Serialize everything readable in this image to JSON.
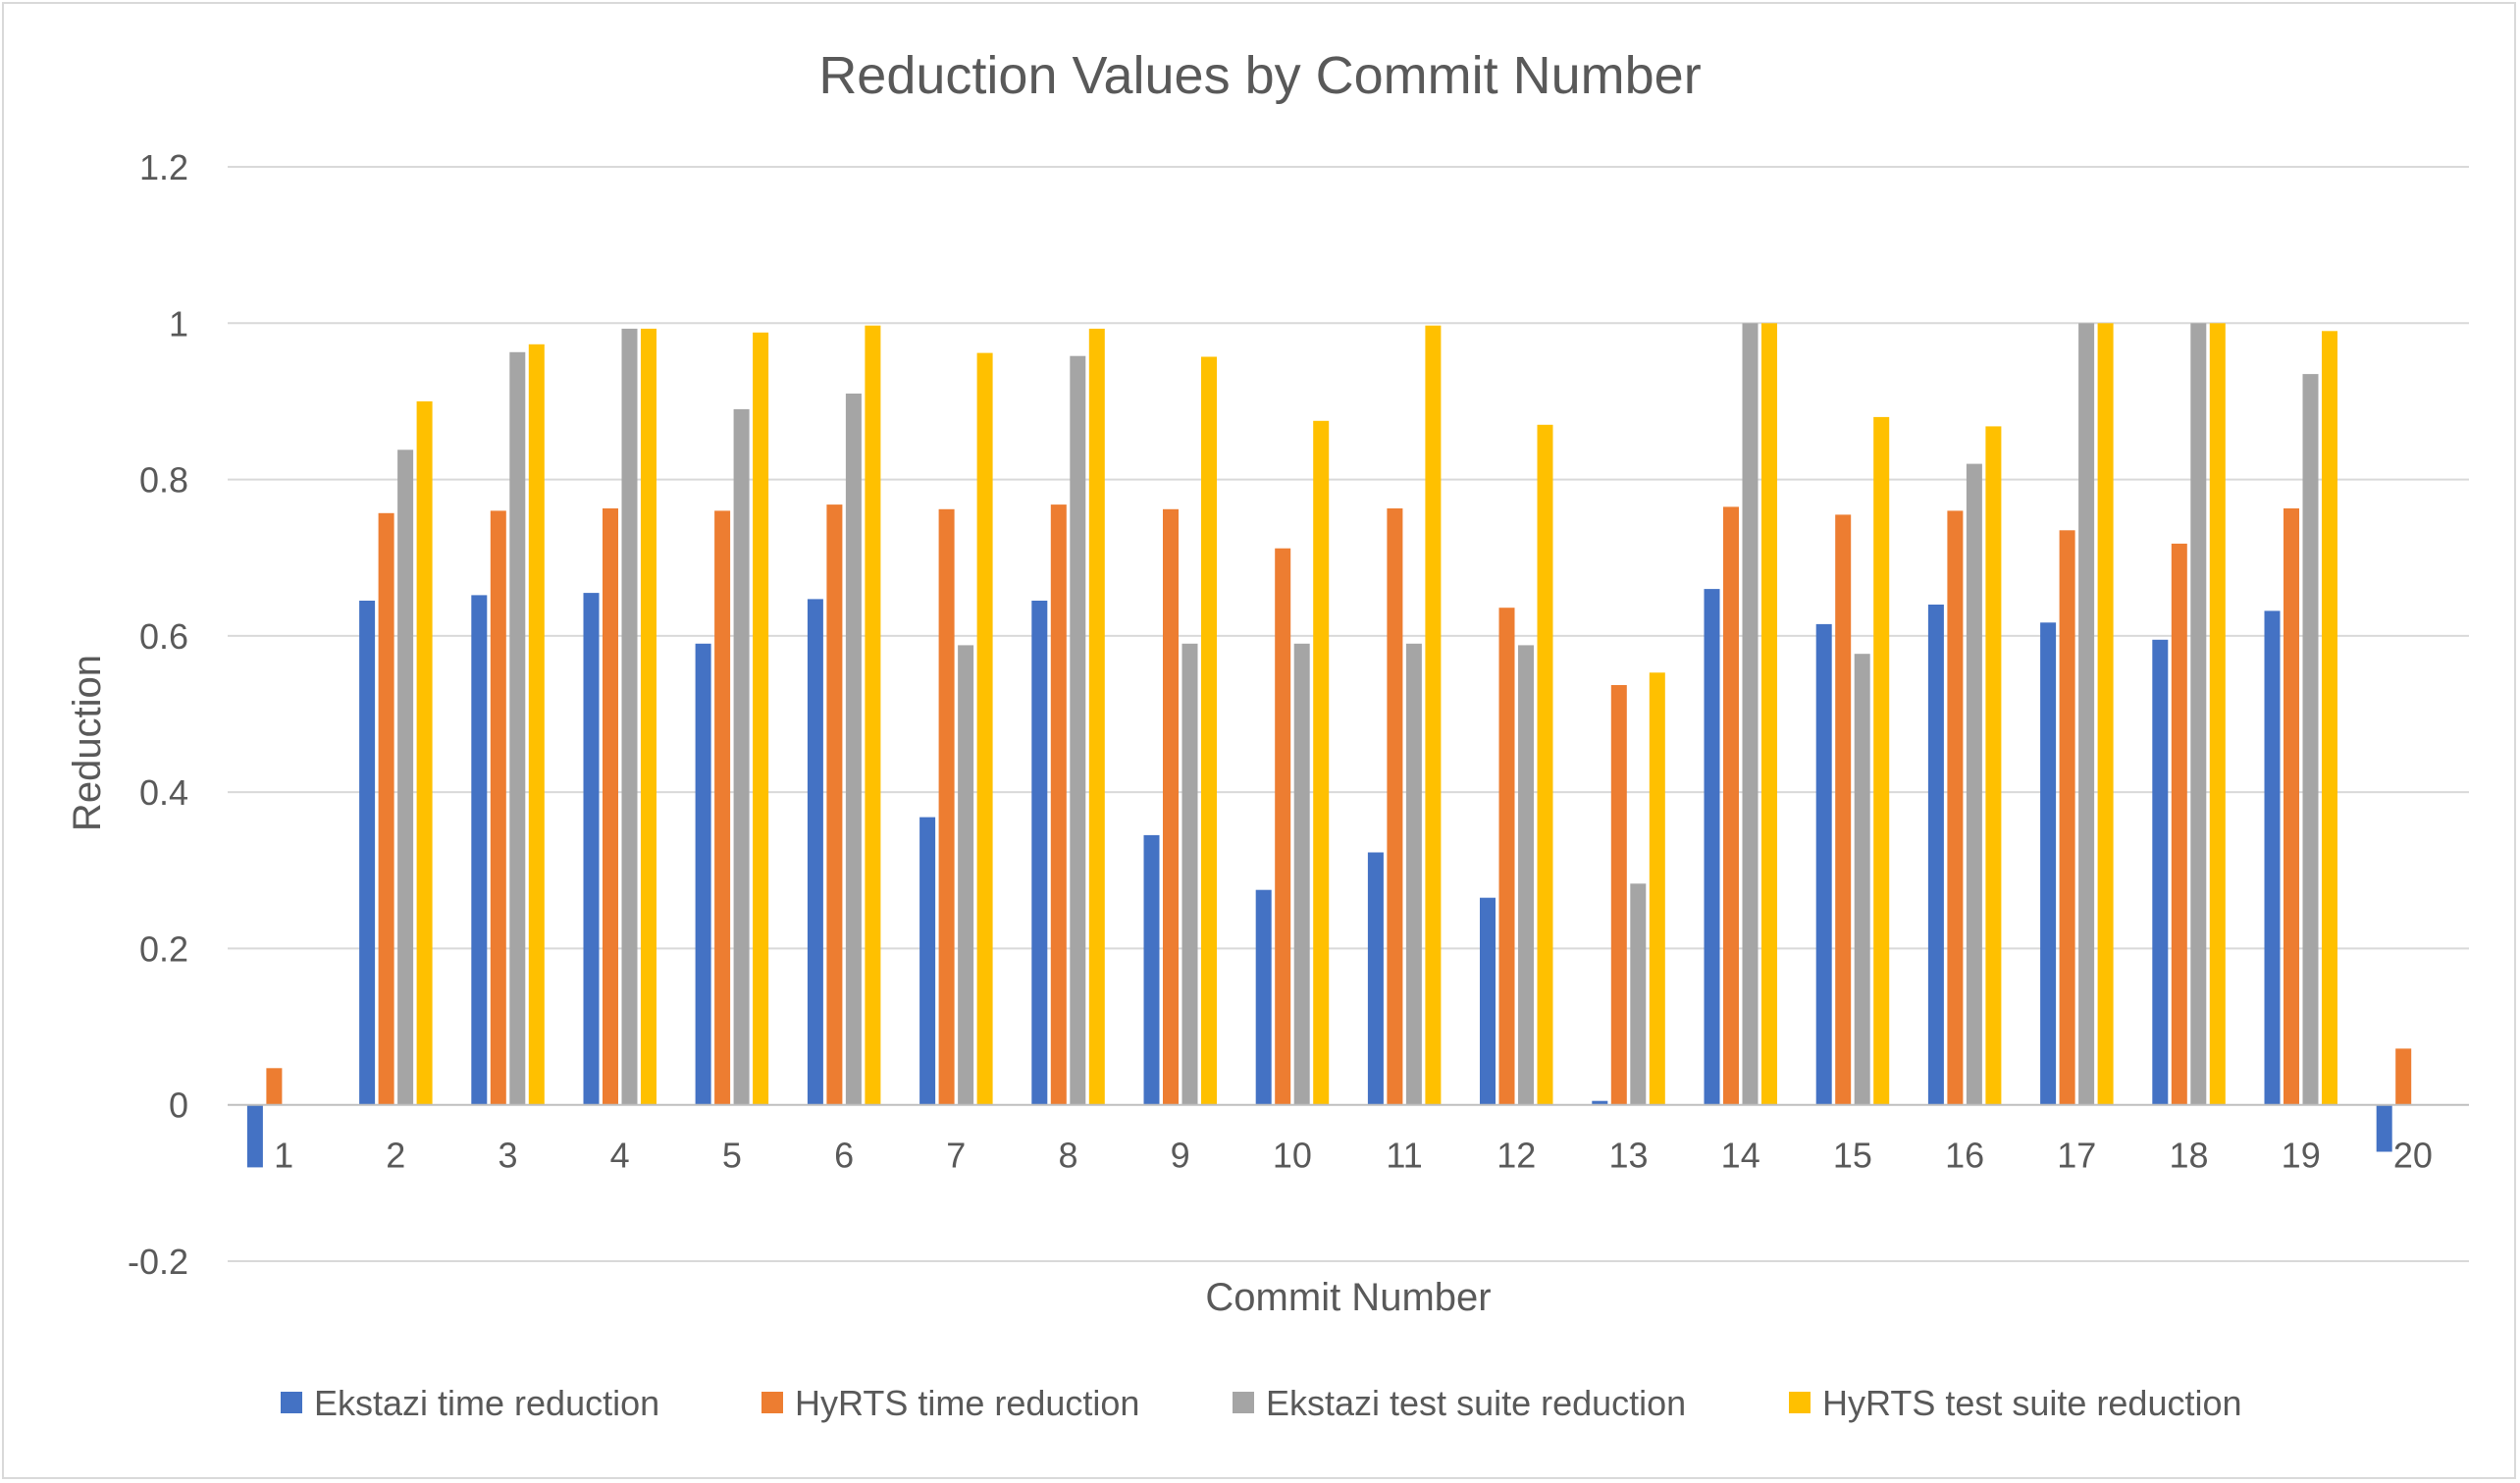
{
  "chart_data": {
    "type": "bar",
    "title": "Reduction Values by Commit Number",
    "xlabel": "Commit Number",
    "ylabel": "Reduction",
    "ylim": [
      -0.2,
      1.2
    ],
    "y_ticks": [
      -0.2,
      0,
      0.2,
      0.4,
      0.6,
      0.8,
      1,
      1.2
    ],
    "y_tick_labels": [
      "-0.2",
      "0",
      "0.2",
      "0.4",
      "0.6",
      "0.8",
      "1",
      "1.2"
    ],
    "grid": true,
    "legend_position": "bottom",
    "categories": [
      "1",
      "2",
      "3",
      "4",
      "5",
      "6",
      "7",
      "8",
      "9",
      "10",
      "11",
      "12",
      "13",
      "14",
      "15",
      "16",
      "17",
      "18",
      "19",
      "20"
    ],
    "series": [
      {
        "name": "Ekstazi time reduction",
        "color": "#4472C4",
        "values": [
          -0.08,
          0.645,
          0.652,
          0.655,
          0.59,
          0.647,
          0.368,
          0.645,
          0.345,
          0.275,
          0.323,
          0.265,
          0.005,
          0.66,
          0.615,
          0.64,
          0.617,
          0.595,
          0.632,
          -0.06
        ]
      },
      {
        "name": "HyRTS time reduction",
        "color": "#ED7D31",
        "values": [
          0.047,
          0.757,
          0.76,
          0.763,
          0.76,
          0.768,
          0.762,
          0.768,
          0.762,
          0.712,
          0.763,
          0.636,
          0.537,
          0.765,
          0.755,
          0.76,
          0.735,
          0.718,
          0.763,
          0.072
        ]
      },
      {
        "name": "Ekstazi test suite reduction",
        "color": "#A5A5A5",
        "values": [
          0,
          0.838,
          0.963,
          0.993,
          0.89,
          0.91,
          0.588,
          0.958,
          0.59,
          0.59,
          0.59,
          0.588,
          0.283,
          1.0,
          0.577,
          0.82,
          1.0,
          1.0,
          0.935,
          0
        ]
      },
      {
        "name": "HyRTS test suite reduction",
        "color": "#FFC000",
        "values": [
          0,
          0.9,
          0.973,
          0.993,
          0.988,
          0.997,
          0.962,
          0.993,
          0.957,
          0.875,
          0.997,
          0.87,
          0.553,
          1.0,
          0.88,
          0.868,
          1.0,
          1.0,
          0.99,
          0
        ]
      }
    ]
  }
}
